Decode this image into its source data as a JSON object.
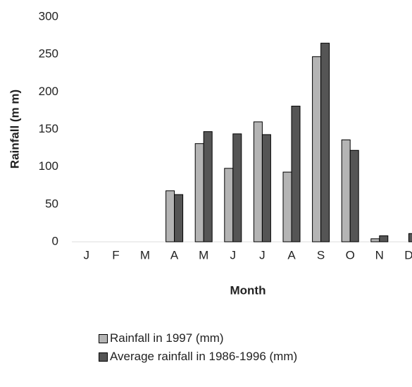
{
  "chart_data": {
    "type": "bar",
    "y_label": "Rainfall (m m)",
    "x_label": "Month",
    "categories": [
      "J",
      "F",
      "M",
      "A",
      "M",
      "J",
      "J",
      "A",
      "S",
      "O",
      "N",
      "D"
    ],
    "series": [
      {
        "name": "Rainfall in 1997 (mm)",
        "color": "#b4b4b4",
        "values": [
          0,
          0,
          0,
          68,
          131,
          98,
          160,
          93,
          247,
          136,
          4,
          0
        ]
      },
      {
        "name": "Average rainfall in 1986-1996 (mm)",
        "color": "#555555",
        "values": [
          0,
          0,
          0,
          63,
          147,
          144,
          143,
          181,
          265,
          122,
          8,
          11
        ]
      }
    ],
    "ylim": [
      0,
      300
    ],
    "yticks": [
      0,
      50,
      100,
      150,
      200,
      250,
      300
    ],
    "grid": false
  }
}
